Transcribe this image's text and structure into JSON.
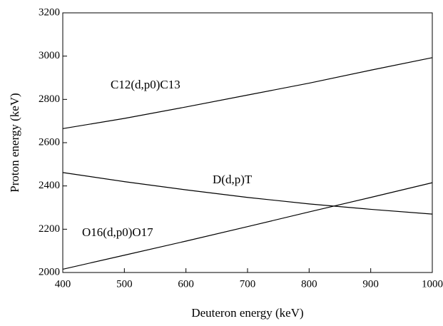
{
  "chart_data": {
    "type": "line",
    "x_label": "Deuteron energy (keV)",
    "y_label": "Proton energy (keV)",
    "x": [
      400,
      500,
      600,
      700,
      800,
      900,
      1000
    ],
    "series": [
      {
        "name": "C12(d,p0)C13",
        "color": "#000000",
        "values": [
          2665,
          2712,
          2765,
          2820,
          2875,
          2935,
          2993
        ]
      },
      {
        "name": "D(d,p)T",
        "color": "#000000",
        "values": [
          2462,
          2420,
          2382,
          2347,
          2317,
          2292,
          2270
        ]
      },
      {
        "name": "O16(d,p0)O17",
        "color": "#000000",
        "values": [
          2015,
          2080,
          2145,
          2212,
          2280,
          2347,
          2415
        ]
      }
    ],
    "xlim": [
      400,
      1000
    ],
    "xticks": [
      400,
      500,
      600,
      700,
      800,
      900,
      1000
    ],
    "ylim": [
      2000,
      3200
    ],
    "yticks": [
      2000,
      2200,
      2400,
      2600,
      2800,
      3000,
      3200
    ],
    "grid": false
  }
}
